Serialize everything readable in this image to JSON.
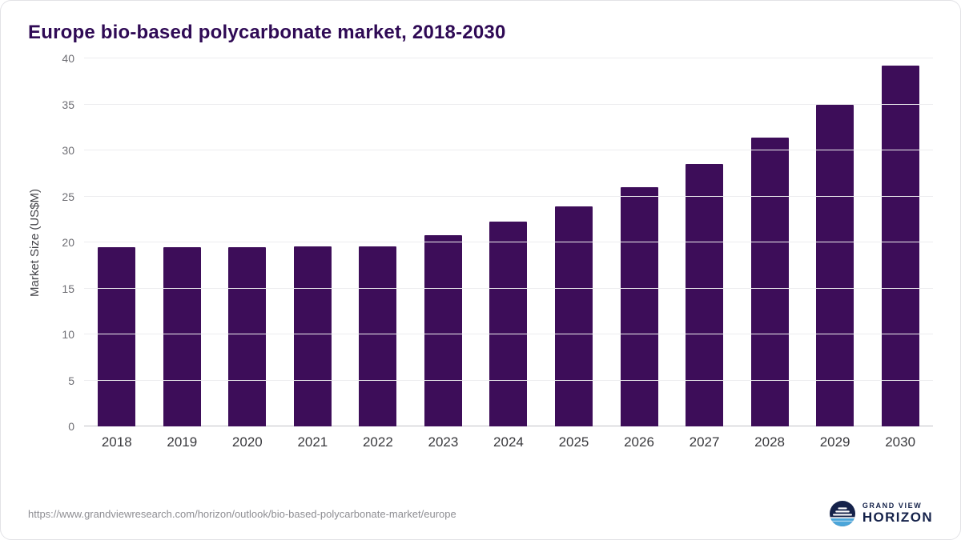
{
  "title": "Europe bio-based polycarbonate market, 2018-2030",
  "footer": {
    "source_url": "https://www.grandviewresearch.com/horizon/outlook/bio-based-polycarbonate-market/europe"
  },
  "logo": {
    "line1": "GRAND VIEW",
    "line2": "HORIZON",
    "navy": "#15224a",
    "blue": "#4aa5d9"
  },
  "chart_data": {
    "type": "bar",
    "title": "Europe bio-based polycarbonate market, 2018-2030",
    "categories": [
      "2018",
      "2019",
      "2020",
      "2021",
      "2022",
      "2023",
      "2024",
      "2025",
      "2026",
      "2027",
      "2028",
      "2029",
      "2030"
    ],
    "values": [
      19.5,
      19.5,
      19.5,
      19.6,
      19.6,
      20.8,
      22.3,
      23.9,
      26.0,
      28.5,
      31.4,
      35.0,
      39.2
    ],
    "xlabel": "",
    "ylabel": "Market Size (US$M)",
    "ylim": [
      0,
      40
    ],
    "yticks": [
      0,
      5,
      10,
      15,
      20,
      25,
      30,
      35,
      40
    ],
    "bar_color": "#3d0d59",
    "grid": true,
    "legend": false
  }
}
